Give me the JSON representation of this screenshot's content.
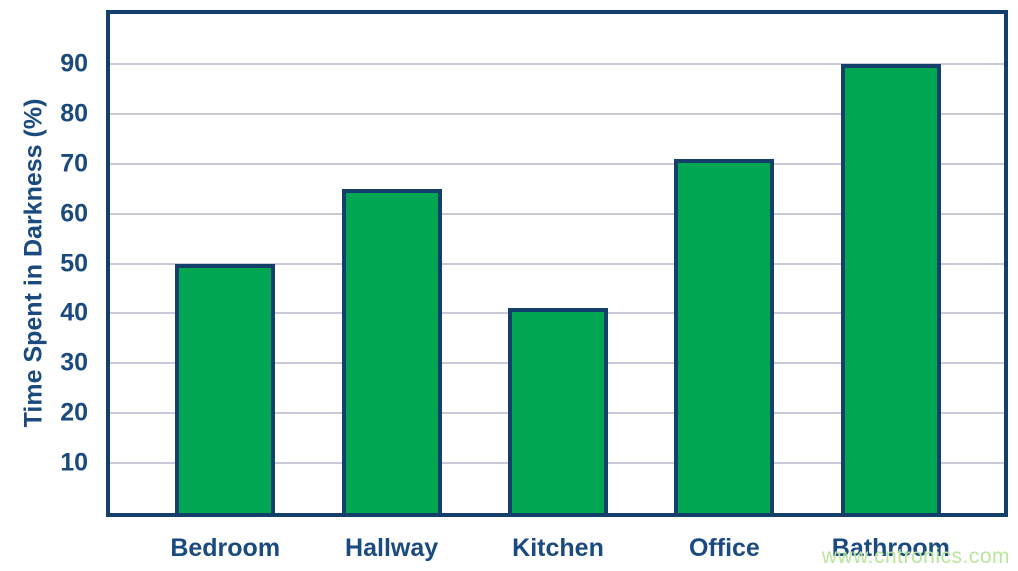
{
  "chart_data": {
    "type": "bar",
    "categories": [
      "Bedroom",
      "Hallway",
      "Kitchen",
      "Office",
      "Bathroom"
    ],
    "values": [
      50,
      65,
      41,
      71,
      90
    ],
    "title": "",
    "xlabel": "",
    "ylabel": "Time Spent in Darkness (%)",
    "ylim": [
      0,
      100
    ],
    "yticks": [
      10,
      20,
      30,
      40,
      50,
      60,
      70,
      80,
      90
    ],
    "grid": "horizontal",
    "legend": "none"
  },
  "colors": {
    "bar_fill": "#00a651",
    "bar_border": "#153f6b",
    "axis_border": "#153f6b",
    "text": "#1a4a7e",
    "gridline": "#c9c9d9",
    "watermark_text_color": "#b9e59f"
  },
  "watermark": "www.cntronics.com"
}
